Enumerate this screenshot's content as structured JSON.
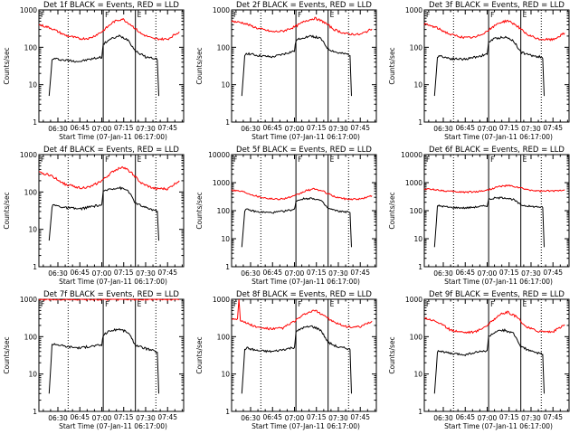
{
  "colors": {
    "events": "#000000",
    "lld": "#ff0000",
    "background": "#ffffff",
    "axes": "#000000"
  },
  "chart_data": [
    {
      "type": "line",
      "title": "Det 1f BLACK = Events, RED = LLD",
      "xlabel": "Start Time (07-Jan-11 06:17:00)",
      "ylabel": "Counts/sec",
      "xlim": [
        "06:17",
        "07:56"
      ],
      "ylim": [
        1,
        1000
      ],
      "yscale": "log",
      "xticks": [
        "06:30",
        "06:45",
        "07:00",
        "07:15",
        "07:30",
        "07:45"
      ],
      "yticks": [
        "1",
        "10",
        "100",
        "1000"
      ],
      "dotted_lines": [
        "06:37",
        "07:37"
      ],
      "solid_lines": [
        "07:01",
        "07:23"
      ],
      "marker_labels": [
        "F",
        "F",
        "E"
      ],
      "series": [
        {
          "name": "Events",
          "color": "#000000",
          "x": [
            "06:24",
            "06:26",
            "06:27",
            "06:35",
            "06:45",
            "06:52",
            "07:00",
            "07:01",
            "07:05",
            "07:12",
            "07:18",
            "07:23",
            "07:30",
            "07:37",
            "07:38",
            "07:39"
          ],
          "y": [
            5,
            45,
            50,
            45,
            42,
            48,
            55,
            120,
            160,
            200,
            160,
            80,
            55,
            50,
            45,
            5
          ]
        },
        {
          "name": "LLD",
          "color": "#ff0000",
          "x": [
            "06:17",
            "06:25",
            "06:35",
            "06:45",
            "06:52",
            "07:00",
            "07:08",
            "07:14",
            "07:20",
            "07:27",
            "07:35",
            "07:45",
            "07:53"
          ],
          "y": [
            400,
            330,
            210,
            170,
            175,
            260,
            480,
            580,
            400,
            230,
            170,
            165,
            260
          ]
        }
      ]
    },
    {
      "type": "line",
      "title": "Det 2f BLACK = Events, RED = LLD",
      "xlabel": "Start Time (07-Jan-11 06:17:00)",
      "ylabel": "Counts/sec",
      "xlim": [
        "06:17",
        "07:56"
      ],
      "ylim": [
        1,
        1000
      ],
      "yscale": "log",
      "xticks": [
        "06:30",
        "06:45",
        "07:00",
        "07:15",
        "07:30",
        "07:45"
      ],
      "yticks": [
        "1",
        "10",
        "100",
        "1000"
      ],
      "dotted_lines": [
        "06:37",
        "07:37"
      ],
      "solid_lines": [
        "07:01",
        "07:23"
      ],
      "marker_labels": [
        "F",
        "F",
        "E"
      ],
      "series": [
        {
          "name": "Events",
          "color": "#000000",
          "x": [
            "06:24",
            "06:26",
            "06:27",
            "06:35",
            "06:45",
            "06:52",
            "07:00",
            "07:01",
            "07:05",
            "07:12",
            "07:18",
            "07:23",
            "07:30",
            "07:37",
            "07:38",
            "07:39"
          ],
          "y": [
            5,
            60,
            70,
            60,
            55,
            65,
            80,
            150,
            180,
            200,
            170,
            90,
            70,
            65,
            60,
            5
          ]
        },
        {
          "name": "LLD",
          "color": "#ff0000",
          "x": [
            "06:17",
            "06:25",
            "06:35",
            "06:45",
            "06:52",
            "07:00",
            "07:08",
            "07:14",
            "07:20",
            "07:27",
            "07:35",
            "07:45",
            "07:53"
          ],
          "y": [
            500,
            450,
            320,
            260,
            270,
            350,
            520,
            600,
            480,
            300,
            230,
            220,
            310
          ]
        }
      ]
    },
    {
      "type": "line",
      "title": "Det 3f BLACK = Events, RED = LLD",
      "xlabel": "Start Time (07-Jan-11 06:17:00)",
      "ylabel": "Counts/sec",
      "xlim": [
        "06:17",
        "07:56"
      ],
      "ylim": [
        1,
        1000
      ],
      "yscale": "log",
      "xticks": [
        "06:30",
        "06:45",
        "07:00",
        "07:15",
        "07:30",
        "07:45"
      ],
      "yticks": [
        "1",
        "10",
        "100",
        "1000"
      ],
      "dotted_lines": [
        "06:37",
        "07:37"
      ],
      "solid_lines": [
        "07:01",
        "07:23"
      ],
      "marker_labels": [
        "F",
        "F",
        "E"
      ],
      "series": [
        {
          "name": "Events",
          "color": "#000000",
          "x": [
            "06:24",
            "06:26",
            "06:27",
            "06:35",
            "06:45",
            "06:52",
            "07:00",
            "07:01",
            "07:05",
            "07:12",
            "07:18",
            "07:23",
            "07:30",
            "07:37",
            "07:38",
            "07:39"
          ],
          "y": [
            5,
            55,
            60,
            50,
            48,
            55,
            65,
            140,
            170,
            190,
            150,
            75,
            60,
            55,
            50,
            5
          ]
        },
        {
          "name": "LLD",
          "color": "#ff0000",
          "x": [
            "06:17",
            "06:25",
            "06:35",
            "06:45",
            "06:52",
            "07:00",
            "07:08",
            "07:14",
            "07:20",
            "07:27",
            "07:35",
            "07:45",
            "07:53"
          ],
          "y": [
            420,
            340,
            220,
            180,
            185,
            270,
            450,
            520,
            390,
            220,
            165,
            160,
            240
          ]
        }
      ]
    },
    {
      "type": "line",
      "title": "Det 4f BLACK = Events, RED = LLD",
      "xlabel": "Start Time (07-Jan-11 06:17:00)",
      "ylabel": "Counts/sec",
      "xlim": [
        "06:17",
        "07:56"
      ],
      "ylim": [
        1,
        1000
      ],
      "yscale": "log",
      "xticks": [
        "06:30",
        "06:45",
        "07:00",
        "07:15",
        "07:30",
        "07:45"
      ],
      "yticks": [
        "1",
        "10",
        "100",
        "1000"
      ],
      "dotted_lines": [
        "06:37",
        "07:37"
      ],
      "solid_lines": [
        "07:01",
        "07:23"
      ],
      "marker_labels": [
        "F",
        "F",
        "E"
      ],
      "series": [
        {
          "name": "Events",
          "color": "#000000",
          "x": [
            "06:24",
            "06:26",
            "06:27",
            "06:35",
            "06:45",
            "06:52",
            "07:00",
            "07:01",
            "07:05",
            "07:12",
            "07:18",
            "07:23",
            "07:30",
            "07:37",
            "07:38",
            "07:39"
          ],
          "y": [
            5,
            40,
            45,
            38,
            35,
            40,
            45,
            100,
            120,
            130,
            110,
            50,
            38,
            32,
            30,
            5
          ]
        },
        {
          "name": "LLD",
          "color": "#ff0000",
          "x": [
            "06:17",
            "06:25",
            "06:35",
            "06:45",
            "06:52",
            "07:00",
            "07:08",
            "07:14",
            "07:20",
            "07:27",
            "07:35",
            "07:45",
            "07:53"
          ],
          "y": [
            330,
            280,
            160,
            130,
            135,
            200,
            360,
            480,
            340,
            170,
            125,
            120,
            200
          ]
        }
      ]
    },
    {
      "type": "line",
      "title": "Det 5f BLACK = Events, RED = LLD",
      "xlabel": "Start Time (07-Jan-11 06:17:00)",
      "ylabel": "Counts/sec",
      "xlim": [
        "06:17",
        "07:56"
      ],
      "ylim": [
        1,
        10000
      ],
      "yscale": "log",
      "xticks": [
        "06:30",
        "06:45",
        "07:00",
        "07:15",
        "07:30",
        "07:45"
      ],
      "yticks": [
        "1",
        "10",
        "100",
        "1000",
        "10000"
      ],
      "dotted_lines": [
        "06:37",
        "07:37"
      ],
      "solid_lines": [
        "07:01",
        "07:23"
      ],
      "marker_labels": [
        "F",
        "F",
        "E"
      ],
      "series": [
        {
          "name": "Events",
          "color": "#000000",
          "x": [
            "06:24",
            "06:26",
            "06:27",
            "06:35",
            "06:45",
            "06:52",
            "07:00",
            "07:01",
            "07:05",
            "07:12",
            "07:18",
            "07:23",
            "07:30",
            "07:37",
            "07:38",
            "07:39"
          ],
          "y": [
            5,
            100,
            110,
            90,
            85,
            95,
            110,
            220,
            260,
            280,
            230,
            120,
            95,
            90,
            85,
            5
          ]
        },
        {
          "name": "LLD",
          "color": "#ff0000",
          "x": [
            "06:17",
            "06:25",
            "06:35",
            "06:45",
            "06:52",
            "07:00",
            "07:08",
            "07:14",
            "07:20",
            "07:27",
            "07:35",
            "07:45",
            "07:53"
          ],
          "y": [
            550,
            480,
            320,
            260,
            265,
            330,
            520,
            600,
            480,
            320,
            260,
            260,
            340
          ]
        }
      ]
    },
    {
      "type": "line",
      "title": "Det 6f BLACK = Events, RED = LLD",
      "xlabel": "Start Time (07-Jan-11 06:17:00)",
      "ylabel": "Counts/sec",
      "xlim": [
        "06:17",
        "07:56"
      ],
      "ylim": [
        1,
        10000
      ],
      "yscale": "log",
      "xticks": [
        "06:30",
        "06:45",
        "07:00",
        "07:15",
        "07:30",
        "07:45"
      ],
      "yticks": [
        "1",
        "10",
        "100",
        "1000",
        "10000"
      ],
      "dotted_lines": [
        "06:37",
        "07:37"
      ],
      "solid_lines": [
        "07:01",
        "07:23"
      ],
      "marker_labels": [
        "F",
        "F",
        "E"
      ],
      "series": [
        {
          "name": "Events",
          "color": "#000000",
          "x": [
            "06:24",
            "06:26",
            "06:27",
            "06:35",
            "06:45",
            "06:52",
            "07:00",
            "07:01",
            "07:05",
            "07:12",
            "07:18",
            "07:23",
            "07:30",
            "07:37",
            "07:38",
            "07:39"
          ],
          "y": [
            5,
            140,
            150,
            130,
            125,
            135,
            150,
            250,
            280,
            290,
            250,
            160,
            140,
            135,
            130,
            5
          ]
        },
        {
          "name": "LLD",
          "color": "#ff0000",
          "x": [
            "06:17",
            "06:25",
            "06:35",
            "06:45",
            "06:52",
            "07:00",
            "07:08",
            "07:14",
            "07:20",
            "07:27",
            "07:35",
            "07:45",
            "07:53"
          ],
          "y": [
            600,
            560,
            480,
            460,
            470,
            540,
            720,
            780,
            700,
            560,
            500,
            500,
            560
          ]
        }
      ]
    },
    {
      "type": "line",
      "title": "Det 7f BLACK = Events, RED = LLD",
      "xlabel": "Start Time (07-Jan-11 06:17:00)",
      "ylabel": "Counts/sec",
      "xlim": [
        "06:17",
        "07:56"
      ],
      "ylim": [
        1,
        1000
      ],
      "yscale": "log",
      "xticks": [
        "06:30",
        "06:45",
        "07:00",
        "07:15",
        "07:30",
        "07:45"
      ],
      "yticks": [
        "1",
        "10",
        "100",
        "1000"
      ],
      "dotted_lines": [
        "06:37",
        "07:37"
      ],
      "solid_lines": [
        "07:01",
        "07:23"
      ],
      "marker_labels": [
        "F",
        "F",
        "E"
      ],
      "series": [
        {
          "name": "Events",
          "color": "#000000",
          "x": [
            "06:24",
            "06:26",
            "06:27",
            "06:35",
            "06:45",
            "06:52",
            "07:00",
            "07:01",
            "07:05",
            "07:12",
            "07:18",
            "07:23",
            "07:30",
            "07:37",
            "07:38",
            "07:39"
          ],
          "y": [
            3,
            60,
            65,
            55,
            50,
            55,
            60,
            110,
            140,
            160,
            130,
            60,
            48,
            40,
            38,
            3
          ]
        },
        {
          "name": "LLD",
          "color": "#ff0000",
          "x": [
            "06:17",
            "06:25",
            "06:35",
            "06:45",
            "06:52",
            "07:00",
            "07:08",
            "07:14",
            "07:20",
            "07:27",
            "07:35",
            "07:45",
            "07:53"
          ],
          "y": [
            1000,
            1000,
            1000,
            1000,
            1000,
            1000,
            1000,
            1000,
            1000,
            1000,
            1000,
            1000,
            1000
          ]
        }
      ]
    },
    {
      "type": "line",
      "title": "Det 8f BLACK = Events, RED = LLD",
      "xlabel": "Start Time (07-Jan-11 06:17:00)",
      "ylabel": "Counts/sec",
      "xlim": [
        "06:17",
        "07:56"
      ],
      "ylim": [
        1,
        1000
      ],
      "yscale": "log",
      "xticks": [
        "06:30",
        "06:45",
        "07:00",
        "07:15",
        "07:30",
        "07:45"
      ],
      "yticks": [
        "1",
        "10",
        "100",
        "1000"
      ],
      "dotted_lines": [
        "06:37",
        "07:37"
      ],
      "solid_lines": [
        "07:01",
        "07:23"
      ],
      "marker_labels": [
        "F",
        "F",
        "E"
      ],
      "series": [
        {
          "name": "Events",
          "color": "#000000",
          "x": [
            "06:24",
            "06:26",
            "06:27",
            "06:35",
            "06:45",
            "06:52",
            "07:00",
            "07:01",
            "07:05",
            "07:12",
            "07:18",
            "07:23",
            "07:30",
            "07:37",
            "07:38",
            "07:39"
          ],
          "y": [
            3,
            45,
            50,
            42,
            40,
            45,
            52,
            130,
            170,
            190,
            150,
            70,
            52,
            48,
            45,
            3
          ]
        },
        {
          "name": "LLD",
          "color": "#ff0000",
          "x": [
            "06:17",
            "06:21",
            "06:22",
            "06:23",
            "06:25",
            "06:35",
            "06:45",
            "06:52",
            "07:00",
            "07:08",
            "07:14",
            "07:20",
            "07:27",
            "07:35",
            "07:45",
            "07:53"
          ],
          "y": [
            300,
            300,
            1000,
            280,
            250,
            175,
            160,
            170,
            260,
            420,
            500,
            380,
            240,
            185,
            180,
            260
          ]
        }
      ]
    },
    {
      "type": "line",
      "title": "Det 9f BLACK = Events, RED = LLD",
      "xlabel": "Start Time (07-Jan-11 06:17:00)",
      "ylabel": "Counts/sec",
      "xlim": [
        "06:17",
        "07:56"
      ],
      "ylim": [
        1,
        1000
      ],
      "yscale": "log",
      "xticks": [
        "06:30",
        "06:45",
        "07:00",
        "07:15",
        "07:30",
        "07:45"
      ],
      "yticks": [
        "1",
        "10",
        "100",
        "1000"
      ],
      "dotted_lines": [
        "06:37",
        "07:37"
      ],
      "solid_lines": [
        "07:01",
        "07:23"
      ],
      "marker_labels": [
        "F",
        "F",
        "E"
      ],
      "series": [
        {
          "name": "Events",
          "color": "#000000",
          "x": [
            "06:24",
            "06:26",
            "06:27",
            "06:35",
            "06:45",
            "06:52",
            "07:00",
            "07:01",
            "07:05",
            "07:12",
            "07:18",
            "07:23",
            "07:30",
            "07:37",
            "07:38",
            "07:39"
          ],
          "y": [
            3,
            38,
            42,
            35,
            33,
            38,
            42,
            100,
            130,
            150,
            120,
            55,
            40,
            35,
            33,
            3
          ]
        },
        {
          "name": "LLD",
          "color": "#ff0000",
          "x": [
            "06:17",
            "06:25",
            "06:35",
            "06:45",
            "06:52",
            "07:00",
            "07:08",
            "07:14",
            "07:20",
            "07:27",
            "07:35",
            "07:45",
            "07:53"
          ],
          "y": [
            320,
            260,
            150,
            130,
            135,
            200,
            380,
            450,
            340,
            180,
            140,
            135,
            210
          ]
        }
      ]
    }
  ]
}
